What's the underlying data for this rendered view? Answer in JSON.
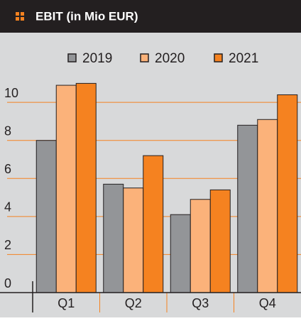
{
  "chart_data": {
    "type": "bar",
    "title": "EBIT (in Mio EUR)",
    "categories": [
      "Q1",
      "Q2",
      "Q3",
      "Q4"
    ],
    "series": [
      {
        "name": "2019",
        "color": "#939598",
        "values": [
          8.0,
          5.7,
          4.1,
          8.8
        ]
      },
      {
        "name": "2020",
        "color": "#fbb27a",
        "values": [
          10.9,
          5.5,
          4.9,
          9.1
        ]
      },
      {
        "name": "2021",
        "color": "#f58220",
        "values": [
          11.0,
          7.2,
          5.4,
          10.4
        ]
      }
    ],
    "ylim": [
      0,
      11.5
    ],
    "yticks": [
      0,
      2,
      4,
      6,
      8,
      10
    ],
    "grid": true
  }
}
